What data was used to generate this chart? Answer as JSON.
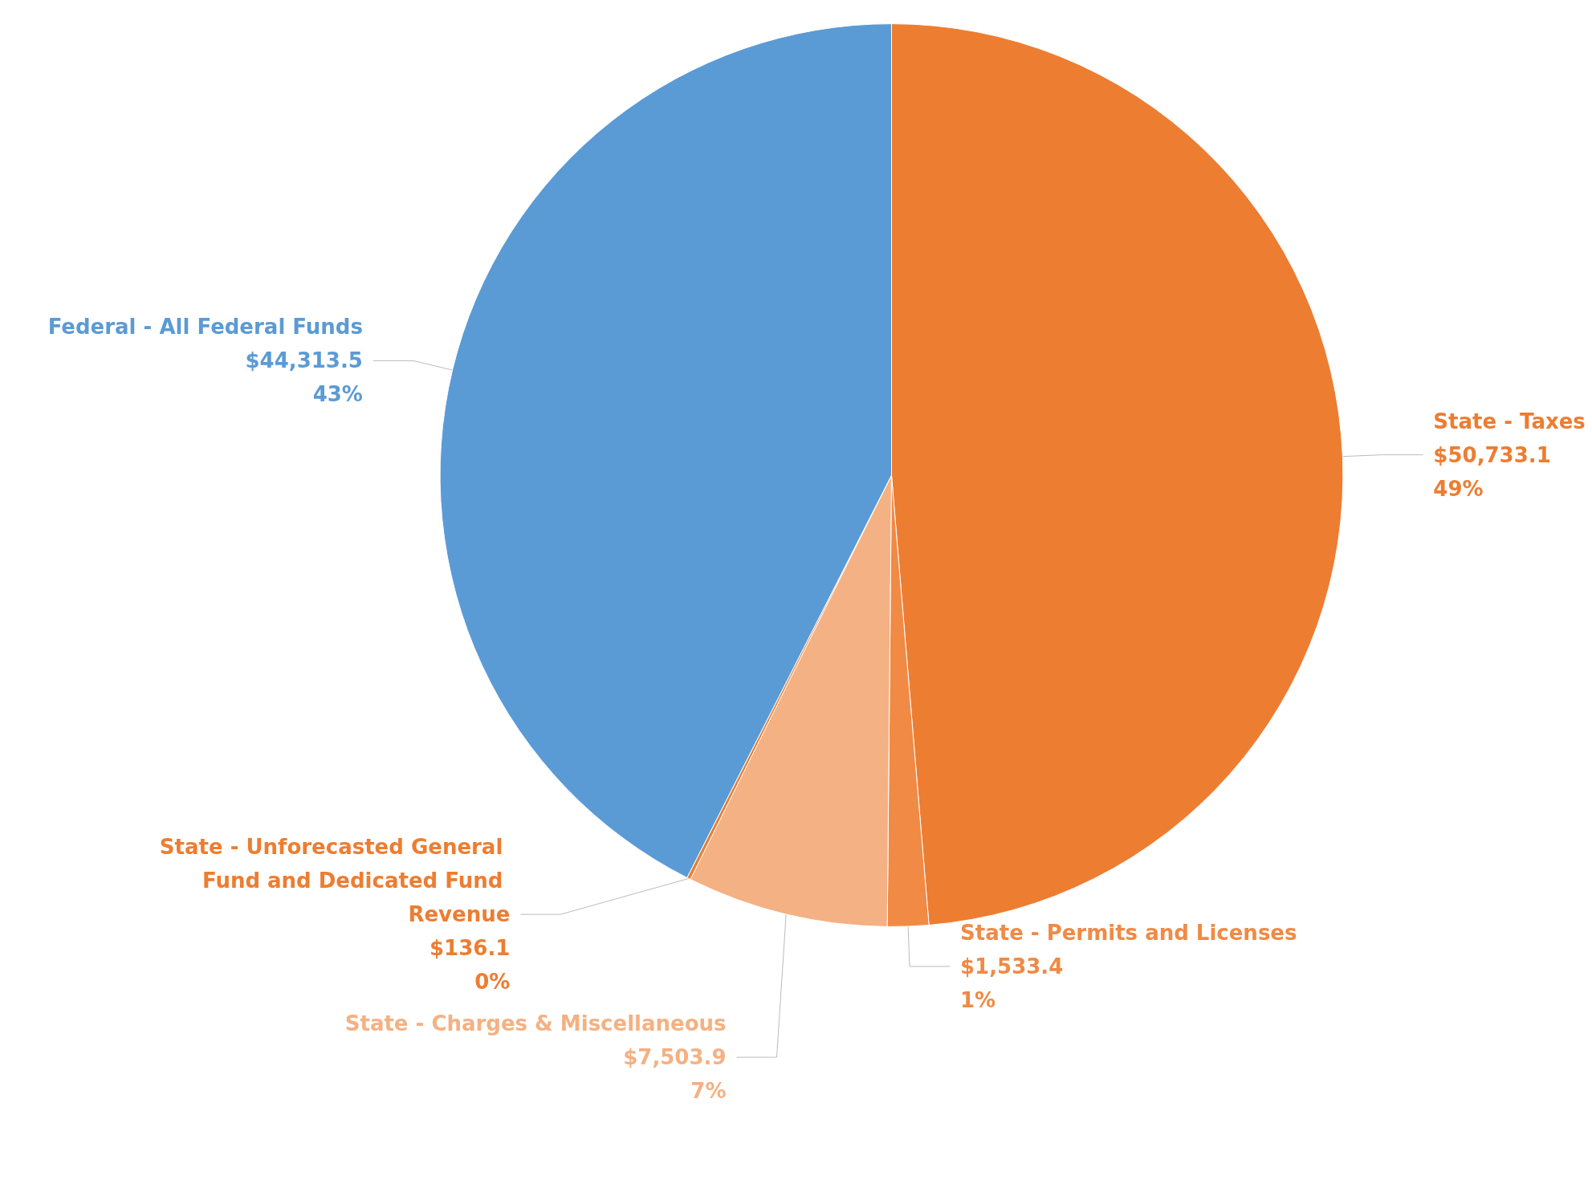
{
  "chart_data": {
    "type": "pie",
    "categories": [
      "State - Taxes",
      "State - Permits and Licenses",
      "State - Charges & Miscellaneous",
      "State - Unforecasted General Fund and Dedicated Fund Revenue",
      "Federal - All Federal Funds"
    ],
    "values": [
      50733.1,
      1533.4,
      7503.9,
      136.1,
      44313.5
    ],
    "value_labels": [
      "$50,733.1\n49%",
      "$1,533.4\n1%",
      "$7,503.9\n7%",
      "$136.1\n0%",
      "$44,313.5\n43%"
    ],
    "colors": [
      "#ed7d31",
      "#f08a45",
      "#f4b183",
      "#ed7d31",
      "#5b9bd5"
    ],
    "legend": false
  }
}
